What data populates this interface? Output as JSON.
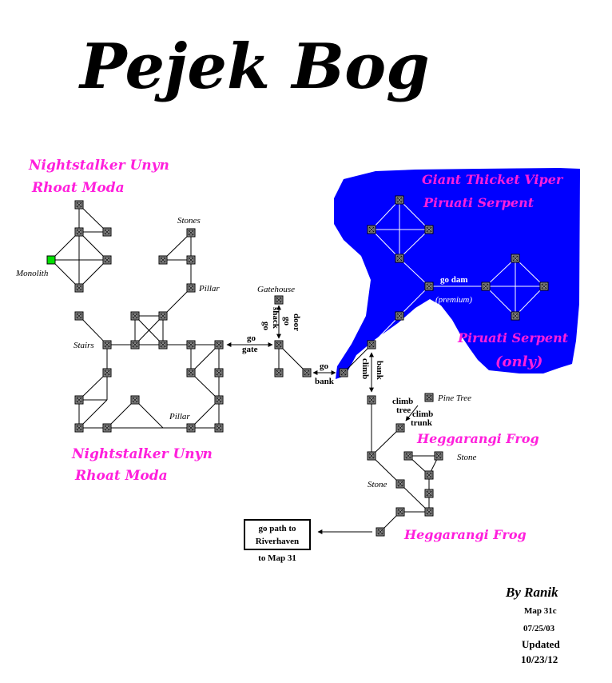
{
  "map": {
    "title": "Pejek Bog",
    "creatures": {
      "northwest_line1": "Nightstalker Unyn",
      "northwest_line2": "Rhoat Moda",
      "southwest_line1": "Nightstalker Unyn",
      "southwest_line2": "Rhoat Moda",
      "lake_line1": "Giant Thicket Viper",
      "lake_line2": "Piruati Serpent",
      "lake_only_line1": "Piruati Serpent",
      "lake_only_line2": "(only)",
      "frog_upper": "Heggarangi Frog",
      "frog_lower": "Heggarangi Frog"
    },
    "places": {
      "monolith": "Monolith",
      "stones": "Stones",
      "pillar_upper": "Pillar",
      "stairs": "Stairs",
      "pillar_lower": "Pillar",
      "gatehouse": "Gatehouse",
      "pine_tree": "Pine Tree",
      "stone_right": "Stone",
      "stone_left": "Stone"
    },
    "directions": {
      "go_gate_1": "go",
      "go_gate_2": "gate",
      "go_shack_1": "go",
      "go_shack_2": "shack",
      "go_door_1": "go",
      "go_door_2": "door",
      "go_bank_1": "go",
      "go_bank_2": "bank",
      "climb_bank_1": "climb",
      "climb_bank_2": "bank",
      "go_dam": "go dam",
      "premium": "(premium)",
      "climb_tree_1": "climb",
      "climb_tree_2": "tree",
      "climb_trunk_1": "climb",
      "climb_trunk_2": "trunk"
    },
    "exit": {
      "line1": "go path to",
      "line2": "Riverhaven",
      "note": "to Map 31"
    },
    "credits": {
      "author": "By Ranik",
      "map_id": "Map 31c",
      "date": "07/25/03",
      "updated_label": "Updated",
      "updated_date": "10/23/12"
    },
    "colors": {
      "water": "#0000ff",
      "creature_text": "#ff1fdc",
      "monolith_room": "#00e000",
      "room": "#9a9a9a"
    },
    "icons": {
      "room": "room-icon",
      "monolith": "monolith-room-icon",
      "arrow": "arrow-icon"
    }
  }
}
